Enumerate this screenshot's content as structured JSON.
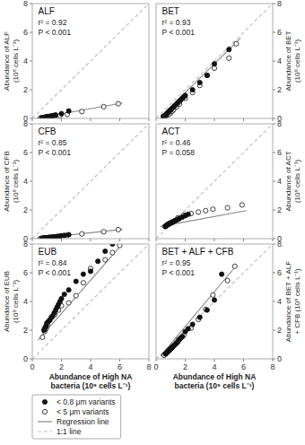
{
  "chart_data": [
    {
      "type": "scatter",
      "title": "ALF",
      "annotations": [
        "r² = 0.92",
        "P < 0.001"
      ],
      "ylabel": "Abundance of ALF\n(10⁹ cells L⁻¹)",
      "xlim": [
        0,
        8
      ],
      "ylim": [
        0,
        8
      ],
      "xticks": [
        0,
        2,
        4,
        6,
        8
      ],
      "yticks": [
        0,
        2,
        4,
        6,
        8
      ],
      "tick_labels": "y",
      "series": [
        {
          "type": "scatter",
          "marker": "filled",
          "color": "#111111",
          "x": [
            0.65,
            0.7,
            0.75,
            0.8,
            0.85,
            0.9,
            0.95,
            1.0,
            1.05,
            1.1,
            1.15,
            1.2,
            1.25,
            1.3,
            1.4,
            1.5,
            1.6,
            2.0,
            2.5
          ],
          "values": [
            0.03,
            0.04,
            0.06,
            0.07,
            0.08,
            0.09,
            0.1,
            0.11,
            0.12,
            0.13,
            0.13,
            0.14,
            0.15,
            0.17,
            0.19,
            0.21,
            0.24,
            0.33,
            0.52
          ]
        },
        {
          "type": "scatter",
          "marker": "open",
          "color": "#111111",
          "x": [
            0.55,
            0.65,
            0.75,
            0.85,
            0.95,
            1.05,
            1.15,
            1.35,
            1.55,
            1.9,
            2.4,
            3.4,
            4.9,
            5.9
          ],
          "values": [
            0.03,
            0.04,
            0.05,
            0.06,
            0.07,
            0.08,
            0.09,
            0.11,
            0.13,
            0.19,
            0.28,
            0.48,
            0.82,
            1.02
          ]
        },
        {
          "type": "line",
          "line_style": "solid",
          "color": "#888888",
          "x": [
            0.3,
            6.2
          ],
          "values": [
            0.01,
            1.08
          ]
        },
        {
          "type": "line",
          "line_style": "dashed",
          "color": "#bbbbbb",
          "x": [
            0,
            8
          ],
          "values": [
            0,
            8
          ]
        }
      ]
    },
    {
      "type": "scatter",
      "title": "BET",
      "annotations": [
        "r² = 0.93",
        "P < 0.001"
      ],
      "ylabel": "Abundance of BET\n(10⁹ cells L⁻¹)",
      "xlim": [
        0,
        8
      ],
      "ylim": [
        0,
        8
      ],
      "xticks": [
        0,
        2,
        4,
        6,
        8
      ],
      "yticks": [
        0,
        2,
        4,
        6,
        8
      ],
      "tick_labels": "y",
      "series": [
        {
          "type": "scatter",
          "marker": "filled",
          "color": "#111111",
          "x": [
            0.5,
            0.6,
            0.65,
            0.7,
            0.75,
            0.8,
            0.85,
            0.9,
            0.95,
            1.0,
            1.1,
            1.2,
            1.3,
            1.4,
            1.5,
            1.6,
            1.7,
            1.8,
            1.9,
            2.0,
            2.5,
            3.0,
            3.5,
            4.0,
            5.0
          ],
          "values": [
            0.15,
            0.2,
            0.25,
            0.3,
            0.35,
            0.4,
            0.45,
            0.5,
            0.55,
            0.6,
            0.7,
            0.8,
            0.9,
            1.0,
            1.1,
            1.2,
            1.3,
            1.4,
            1.5,
            1.6,
            2.0,
            2.5,
            3.0,
            3.8,
            4.8
          ]
        },
        {
          "type": "scatter",
          "marker": "open",
          "color": "#111111",
          "x": [
            0.5,
            0.6,
            0.7,
            0.8,
            0.9,
            1.0,
            1.1,
            1.2,
            1.4,
            1.6,
            2.0,
            2.5,
            3.0,
            3.5,
            4.0,
            5.0,
            5.5
          ],
          "values": [
            0.1,
            0.15,
            0.2,
            0.25,
            0.3,
            0.4,
            0.5,
            0.6,
            0.8,
            1.0,
            1.4,
            1.8,
            2.3,
            3.0,
            3.5,
            4.2,
            5.2
          ]
        },
        {
          "type": "line",
          "line_style": "solid",
          "color": "#888888",
          "x": [
            0.3,
            5.8
          ],
          "values": [
            0.1,
            5.6
          ]
        },
        {
          "type": "line",
          "line_style": "dashed",
          "color": "#bbbbbb",
          "x": [
            0,
            8
          ],
          "values": [
            0,
            8
          ]
        }
      ]
    },
    {
      "type": "scatter",
      "title": "CFB",
      "annotations": [
        "r² = 0.85",
        "P < 0.001"
      ],
      "ylabel": "Abundance of CFB\n(10⁹ cells L⁻¹)",
      "xlim": [
        0,
        8
      ],
      "ylim": [
        0,
        8
      ],
      "xticks": [
        0,
        2,
        4,
        6,
        8
      ],
      "yticks": [
        0,
        2,
        4,
        6,
        8
      ],
      "tick_labels": "y",
      "series": [
        {
          "type": "scatter",
          "marker": "filled",
          "color": "#111111",
          "x": [
            0.65,
            0.7,
            0.75,
            0.8,
            0.85,
            0.9,
            0.95,
            1.0,
            1.05,
            1.1,
            1.15,
            1.2,
            1.3,
            1.4,
            1.5,
            1.6,
            1.7,
            1.8,
            2.0,
            2.2,
            2.5
          ],
          "values": [
            0.02,
            0.03,
            0.03,
            0.04,
            0.05,
            0.05,
            0.06,
            0.06,
            0.07,
            0.08,
            0.08,
            0.09,
            0.1,
            0.11,
            0.12,
            0.13,
            0.15,
            0.16,
            0.2,
            0.23,
            0.28
          ]
        },
        {
          "type": "scatter",
          "marker": "open",
          "color": "#111111",
          "x": [
            0.55,
            0.65,
            0.75,
            0.85,
            0.95,
            1.05,
            1.15,
            1.35,
            1.55,
            1.9,
            2.4,
            3.4,
            4.9,
            5.9
          ],
          "values": [
            0.01,
            0.02,
            0.03,
            0.04,
            0.05,
            0.06,
            0.07,
            0.09,
            0.11,
            0.17,
            0.23,
            0.33,
            0.48,
            0.63
          ]
        },
        {
          "type": "line",
          "line_style": "solid",
          "color": "#888888",
          "x": [
            0.3,
            6.2
          ],
          "values": [
            0.01,
            0.65
          ]
        },
        {
          "type": "line",
          "line_style": "dashed",
          "color": "#bbbbbb",
          "x": [
            0,
            8
          ],
          "values": [
            0,
            8
          ]
        }
      ]
    },
    {
      "type": "scatter",
      "title": "ACT",
      "annotations": [
        "r² = 0.46",
        "P = 0.058"
      ],
      "ylabel": "Abundance of ACT\n(10⁹ cells L⁻¹)",
      "xlim": [
        0,
        8
      ],
      "ylim": [
        0,
        8
      ],
      "xticks": [
        0,
        2,
        4,
        6,
        8
      ],
      "yticks": [
        0,
        2,
        4,
        6,
        8
      ],
      "tick_labels": "y",
      "series": [
        {
          "type": "scatter",
          "marker": "filled",
          "color": "#111111",
          "x": [
            0.65,
            0.7,
            0.75,
            0.8,
            0.85,
            0.9,
            0.95,
            1.0,
            1.05,
            1.1,
            1.15,
            1.2,
            1.3,
            1.4,
            1.5,
            1.6,
            1.8,
            2.0,
            2.2
          ],
          "values": [
            0.85,
            0.9,
            0.95,
            1.0,
            1.0,
            1.05,
            1.05,
            1.1,
            1.1,
            1.15,
            1.15,
            1.2,
            1.25,
            1.3,
            1.35,
            1.4,
            1.5,
            1.6,
            1.7
          ]
        },
        {
          "type": "scatter",
          "marker": "open",
          "color": "#111111",
          "x": [
            0.6,
            0.75,
            0.9,
            1.1,
            1.3,
            1.5,
            1.9,
            2.4,
            2.9,
            3.4,
            3.9,
            4.9,
            5.9
          ],
          "values": [
            0.85,
            0.95,
            1.05,
            1.15,
            1.25,
            1.45,
            1.65,
            1.75,
            1.85,
            1.95,
            2.05,
            2.15,
            2.35
          ]
        },
        {
          "type": "line",
          "line_style": "solid",
          "color": "#888888",
          "x": [
            0.3,
            6.2
          ],
          "values": [
            0.85,
            1.95
          ]
        },
        {
          "type": "line",
          "line_style": "dashed",
          "color": "#bbbbbb",
          "x": [
            0,
            8
          ],
          "values": [
            0,
            8
          ]
        }
      ]
    },
    {
      "type": "scatter",
      "title": "EUB",
      "annotations": [
        "r² = 0.84",
        "P < 0.001"
      ],
      "ylabel": "Abundance of EUB\n(10⁹ cells L⁻¹)",
      "xlabel": "Abundance of High NA\nbacteria (10⁹ cells L⁻¹)",
      "xlim": [
        0,
        8
      ],
      "ylim": [
        0,
        8
      ],
      "xticks": [
        0,
        2,
        4,
        6,
        8
      ],
      "yticks": [
        0,
        2,
        4,
        6,
        8
      ],
      "legend": "below",
      "series": [
        {
          "name": "< 0.8 μm variants",
          "type": "scatter",
          "marker": "filled",
          "color": "#111111",
          "x": [
            0.8,
            0.85,
            0.9,
            0.95,
            1.0,
            1.1,
            1.2,
            1.3,
            1.4,
            1.5,
            1.6,
            1.7,
            1.8,
            1.9,
            2.0,
            2.2,
            2.5,
            3.0,
            3.5,
            4.0,
            4.5,
            5.0,
            5.5
          ],
          "values": [
            2.0,
            2.1,
            2.2,
            2.3,
            2.5,
            2.6,
            2.7,
            2.9,
            3.0,
            3.2,
            3.4,
            3.6,
            3.8,
            4.0,
            4.2,
            4.5,
            4.8,
            5.4,
            5.9,
            6.1,
            6.8,
            7.5,
            8.0
          ]
        },
        {
          "name": "< 5 μm variants",
          "type": "scatter",
          "marker": "open",
          "color": "#111111",
          "x": [
            0.7,
            0.85,
            0.95,
            1.05,
            1.2,
            1.35,
            1.55,
            1.8,
            2.0,
            2.5,
            3.0,
            3.5,
            4.0,
            5.0,
            5.5,
            6.0
          ],
          "values": [
            1.5,
            1.9,
            2.1,
            2.4,
            2.7,
            2.9,
            3.1,
            3.4,
            3.7,
            3.9,
            4.4,
            5.3,
            6.3,
            6.9,
            7.4,
            7.9
          ]
        },
        {
          "name": "Regression line",
          "type": "line",
          "line_style": "solid",
          "color": "#888888",
          "x": [
            0.4,
            6.0
          ],
          "values": [
            1.3,
            7.8
          ]
        },
        {
          "name": "1:1 line",
          "type": "line",
          "line_style": "dashed",
          "color": "#bbbbbb",
          "x": [
            0,
            8
          ],
          "values": [
            0,
            8
          ]
        }
      ]
    },
    {
      "type": "scatter",
      "title": "BET + ALF + CFB",
      "annotations": [
        "r² = 0.95",
        "P < 0.001"
      ],
      "ylabel": "Abundance of BET + ALF\n+ CFB (10⁹ cells L⁻¹)",
      "xlabel": "Abundance of High NA\nbacteria (10⁹ cells L⁻¹)",
      "xlim": [
        0,
        8
      ],
      "ylim": [
        0,
        8
      ],
      "xticks": [
        0,
        2,
        4,
        6,
        8
      ],
      "yticks": [
        0,
        2,
        4,
        6,
        8
      ],
      "series": [
        {
          "type": "scatter",
          "marker": "filled",
          "color": "#111111",
          "x": [
            0.65,
            0.7,
            0.75,
            0.8,
            0.85,
            0.9,
            0.95,
            1.0,
            1.05,
            1.1,
            1.2,
            1.3,
            1.4,
            1.5,
            1.6,
            1.7,
            1.8,
            2.0,
            2.2,
            2.5,
            3.0,
            3.5,
            4.0,
            4.5
          ],
          "values": [
            0.35,
            0.4,
            0.45,
            0.5,
            0.55,
            0.6,
            0.65,
            0.7,
            0.75,
            0.8,
            0.9,
            1.0,
            1.1,
            1.2,
            1.35,
            1.45,
            1.55,
            1.9,
            2.1,
            2.4,
            2.9,
            3.4,
            4.1,
            5.9
          ]
        },
        {
          "type": "scatter",
          "marker": "open",
          "color": "#111111",
          "x": [
            0.55,
            0.65,
            0.75,
            0.85,
            0.95,
            1.05,
            1.15,
            1.35,
            1.55,
            1.9,
            2.4,
            2.9,
            3.4,
            3.9,
            4.9,
            5.4
          ],
          "values": [
            0.25,
            0.35,
            0.45,
            0.55,
            0.65,
            0.75,
            0.85,
            1.05,
            1.35,
            1.65,
            2.15,
            2.75,
            3.45,
            4.45,
            5.45,
            6.45
          ]
        },
        {
          "type": "line",
          "line_style": "solid",
          "color": "#888888",
          "x": [
            0.3,
            5.5
          ],
          "values": [
            0.2,
            6.5
          ]
        },
        {
          "type": "line",
          "line_style": "dashed",
          "color": "#bbbbbb",
          "x": [
            0,
            8
          ],
          "values": [
            0,
            8
          ]
        }
      ]
    }
  ]
}
